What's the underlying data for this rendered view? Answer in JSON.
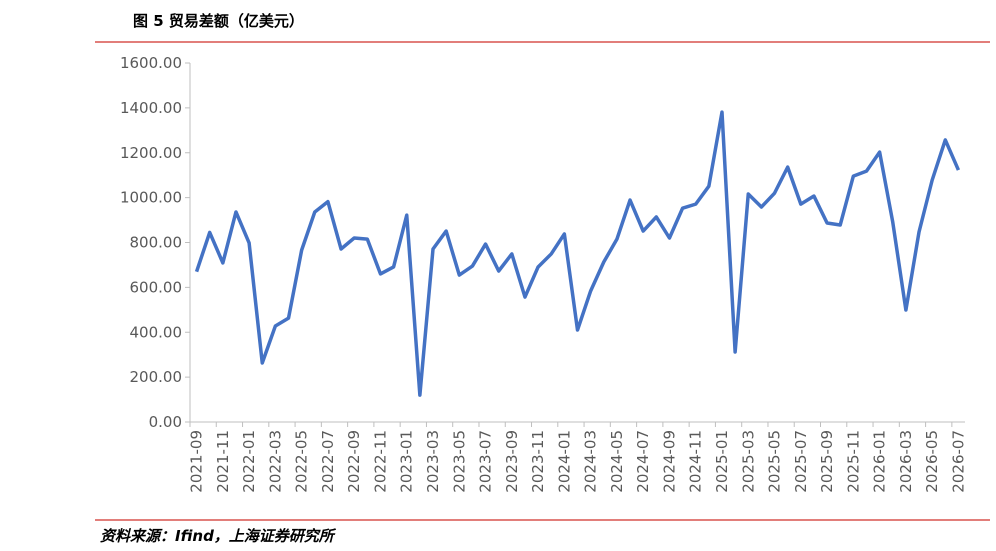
{
  "chart_data": {
    "type": "line",
    "title": "图 5 贸易差额（亿美元）",
    "source": "资料来源：Ifind，上海证券研究所",
    "categories": [
      "2021-09",
      null,
      "2021-11",
      null,
      "2022-01",
      null,
      "2022-03",
      null,
      "2022-05",
      null,
      "2022-07",
      null,
      "2022-09",
      null,
      "2022-11",
      null,
      "2023-01",
      null,
      "2023-03",
      null,
      "2023-05",
      null,
      "2023-07",
      null,
      "2023-09",
      null,
      "2023-11",
      null,
      "2024-01",
      null,
      "2024-03",
      null,
      "2024-05",
      null,
      "2024-07",
      null,
      "2024-09",
      null,
      "2024-11",
      null,
      "2025-01",
      null,
      "2025-03",
      null,
      "2025-05",
      null,
      "2025-07",
      null,
      "2025-09",
      null,
      "2025-11",
      null,
      "2026-01",
      null,
      "2026-03",
      null,
      "2026-05",
      null,
      "2026-07"
    ],
    "series": [
      {
        "name": "贸易差额",
        "color": "#4472c4",
        "values": [
          670,
          845,
          709,
          936,
          798,
          263,
          428,
          463,
          766,
          936,
          982,
          771,
          820,
          815,
          660,
          691,
          922,
          120,
          771,
          851,
          655,
          695,
          793,
          673,
          749,
          557,
          691,
          749,
          838,
          410,
          584,
          713,
          815,
          989,
          851,
          914,
          820,
          953,
          971,
          1051,
          1381,
          312,
          1016,
          958,
          1020,
          1136,
          971,
          1007,
          887,
          878,
          1096,
          1118,
          1203,
          891,
          499,
          847,
          1078,
          1257,
          1123
        ]
      }
    ],
    "ylim": [
      0,
      1600
    ],
    "yticks": [
      {
        "value": 0,
        "label": "0.00"
      },
      {
        "value": 200,
        "label": "200.00"
      },
      {
        "value": 400,
        "label": "400.00"
      },
      {
        "value": 600,
        "label": "600.00"
      },
      {
        "value": 800,
        "label": "800.00"
      },
      {
        "value": 1000,
        "label": "1000.00"
      },
      {
        "value": 1200,
        "label": "1200.00"
      },
      {
        "value": 1400,
        "label": "1400.00"
      },
      {
        "value": 1600,
        "label": "1600.00"
      }
    ],
    "grid": false
  }
}
